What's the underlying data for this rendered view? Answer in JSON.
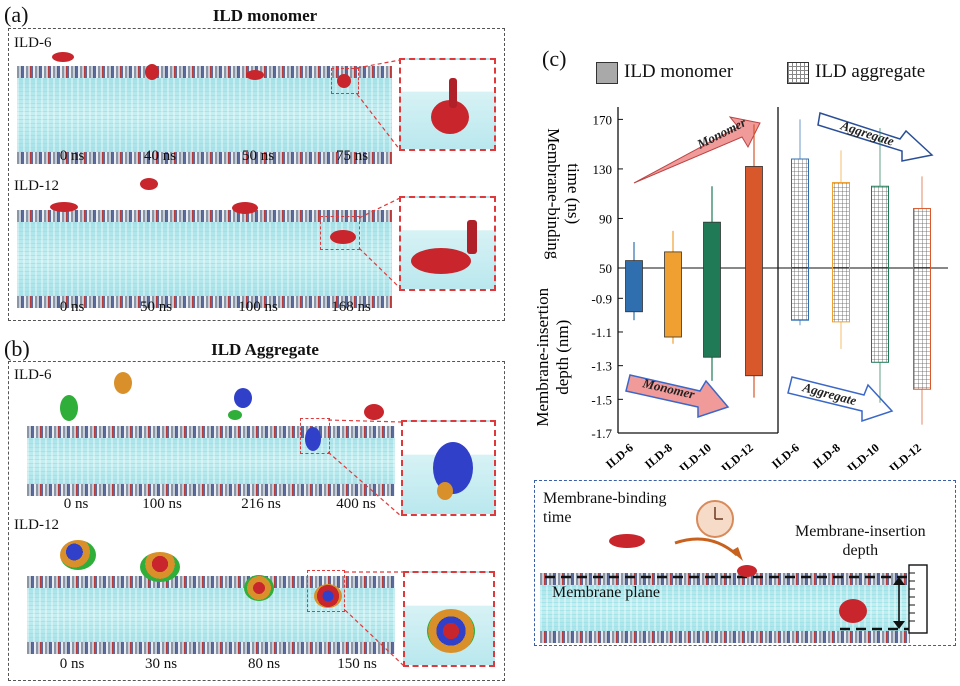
{
  "panel_a": {
    "letter": "(a)",
    "title": "ILD monomer",
    "rows": [
      {
        "label": "ILD-6",
        "times": [
          "0 ns",
          "40 ns",
          "50 ns",
          "75 ns"
        ]
      },
      {
        "label": "ILD-12",
        "times": [
          "0 ns",
          "50 ns",
          "100 ns",
          "168 ns"
        ]
      }
    ]
  },
  "panel_b": {
    "letter": "(b)",
    "title": "ILD Aggregate",
    "rows": [
      {
        "label": "ILD-6",
        "times": [
          "0 ns",
          "100 ns",
          "216 ns",
          "400 ns"
        ]
      },
      {
        "label": "ILD-12",
        "times": [
          "0 ns",
          "30 ns",
          "80 ns",
          "150 ns"
        ]
      }
    ]
  },
  "panel_c": {
    "letter": "(c)",
    "legend": {
      "monomer": "ILD monomer",
      "aggregate": "ILD aggregate"
    },
    "y_label_top": [
      "Membrane-binding",
      "time (ns)"
    ],
    "y_label_bottom": [
      "Membrane-insertion",
      "depth (nm)"
    ],
    "arrow_labels": {
      "monomer_top": "Monomer",
      "aggregate_top": "Aggregate",
      "monomer_bottom": "Monomer",
      "aggregate_bottom": "Aggregate"
    },
    "colors": {
      "ILD-6": "#2f6fb0",
      "ILD-8": "#f0a030",
      "ILD-10": "#1f7a55",
      "ILD-12": "#d9582b"
    }
  },
  "chart_data": {
    "type": "bar",
    "title": "",
    "categories": [
      "ILD-6",
      "ILD-8",
      "ILD-10",
      "ILD-12"
    ],
    "top_axis": {
      "label": "Membrane-binding time (ns)",
      "ticks": [
        50,
        90,
        130,
        170
      ],
      "range": [
        50,
        180
      ]
    },
    "bottom_axis": {
      "label": "Membrane-insertion depth (nm)",
      "ticks": [
        -0.9,
        -1.1,
        -1.3,
        -1.5,
        -1.7
      ],
      "range": [
        -0.72,
        -1.7
      ]
    },
    "series": [
      {
        "name": "ILD monomer",
        "binding_time": [
          56,
          63,
          87,
          132
        ],
        "binding_time_err_top": [
          71,
          80,
          116,
          166
        ],
        "insertion_depth": [
          -0.98,
          -1.13,
          -1.25,
          -1.36
        ],
        "insertion_depth_err_bottom": [
          -1.03,
          -1.17,
          -1.39,
          -1.49
        ]
      },
      {
        "name": "ILD aggregate",
        "binding_time": [
          138,
          119,
          116,
          98
        ],
        "binding_time_err_top": [
          170,
          145,
          163,
          124
        ],
        "insertion_depth": [
          -1.03,
          -1.04,
          -1.28,
          -1.44
        ],
        "insertion_depth_err_bottom": [
          -1.06,
          -1.2,
          -1.52,
          -1.65
        ]
      }
    ]
  },
  "schematic": {
    "binding_label": [
      "Membrane-binding",
      "time"
    ],
    "insertion_label": [
      "Membrane-insertion",
      "depth"
    ],
    "plane_label": "Membrane plane"
  }
}
